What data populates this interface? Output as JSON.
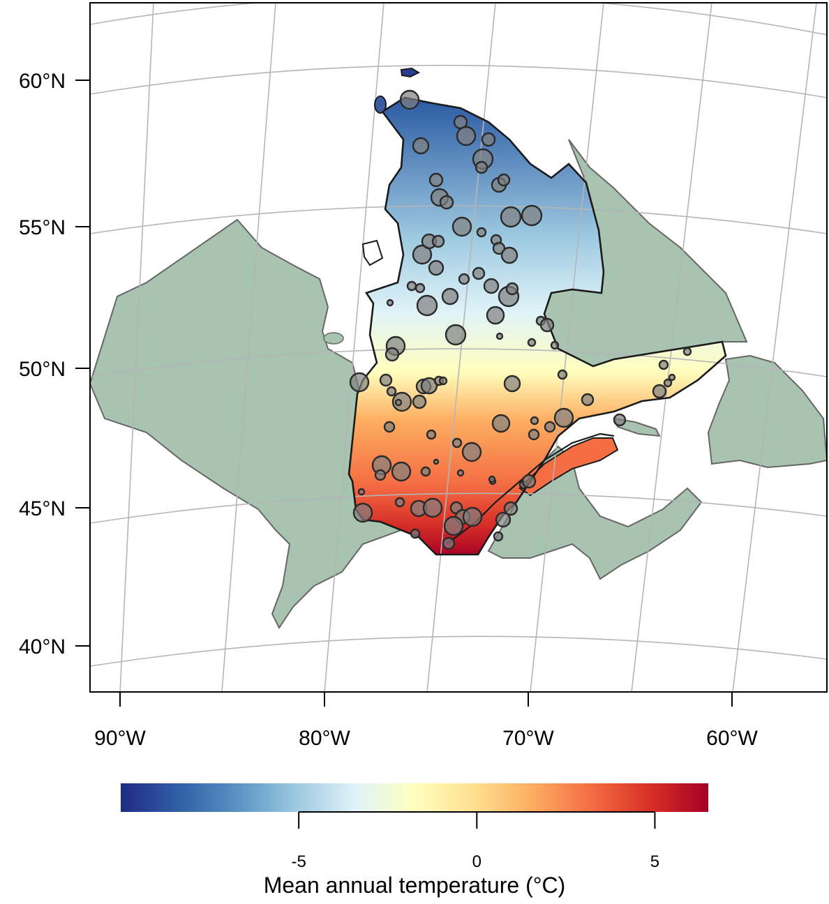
{
  "map": {
    "lat_labels": [
      "60°N",
      "55°N",
      "50°N",
      "45°N",
      "40°N"
    ],
    "lon_labels": [
      "90°W",
      "80°W",
      "70°W",
      "60°W"
    ],
    "colors": {
      "land": "#a8c4b0",
      "land_border": "#666666",
      "graticule": "#b5b5b5",
      "region_border": "#1a1a1a",
      "station_fill": "#808080",
      "station_stroke": "#2a2a2a"
    }
  },
  "colorbar": {
    "title": "Mean annual temperature (°C)",
    "ticks": [
      {
        "value": -5,
        "label": "-5"
      },
      {
        "value": 0,
        "label": "0"
      },
      {
        "value": 5,
        "label": "5"
      }
    ],
    "range": [
      -10,
      6.5
    ],
    "colors": [
      "#1f2a83",
      "#3160a6",
      "#5a93c4",
      "#9ecae1",
      "#e0f3f8",
      "#ffffbf",
      "#fee090",
      "#fdae61",
      "#f46d43",
      "#d73027",
      "#a50026"
    ]
  }
}
